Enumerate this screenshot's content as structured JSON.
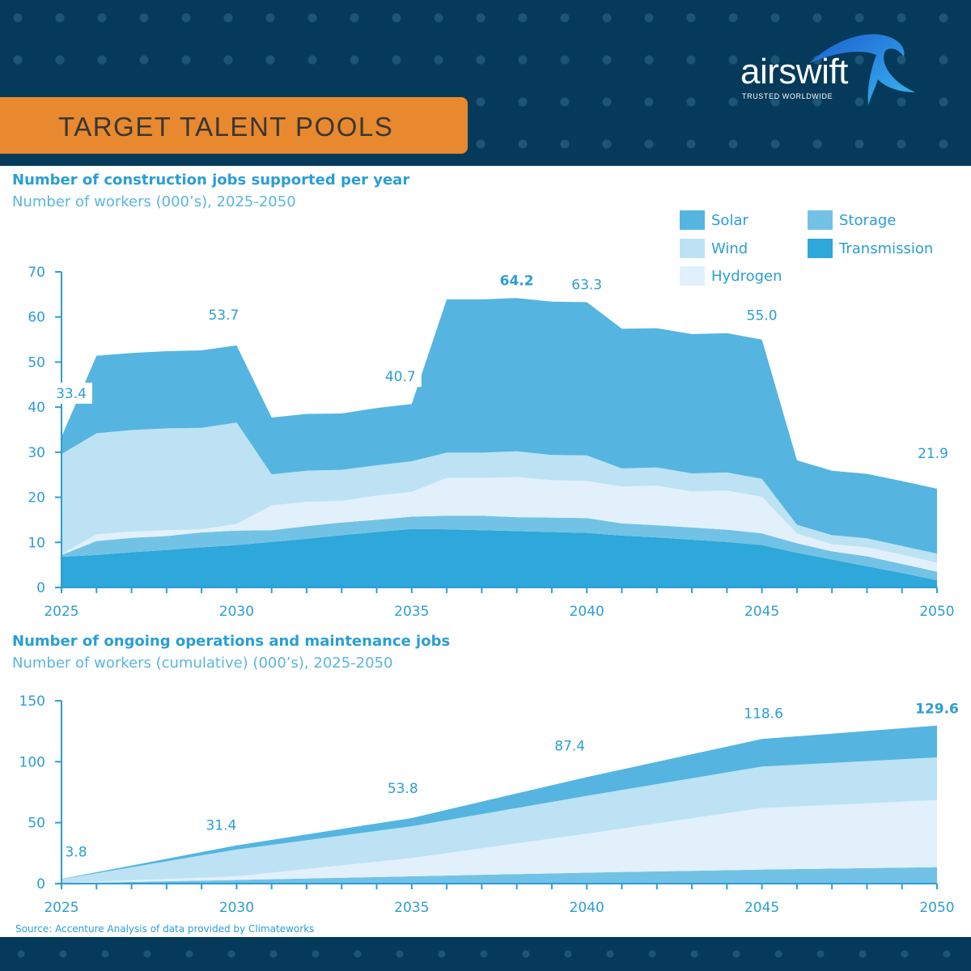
{
  "header": {
    "banner_title": "TARGET TALENT POOLS",
    "logo_text": "airswift",
    "logo_tagline": "TRUSTED WORLDWIDE",
    "background_color": "#053a5a",
    "banner_color": "#e8892f"
  },
  "legend": [
    {
      "name": "Solar",
      "color": "#55b5e0"
    },
    {
      "name": "Storage",
      "color": "#72c2e6"
    },
    {
      "name": "Wind",
      "color": "#bde2f3"
    },
    {
      "name": "Transmission",
      "color": "#2ea7da"
    },
    {
      "name": "Hydrogen",
      "color": "#e1f0fa"
    }
  ],
  "source": "Source: Accenture Analysis of data provided by Climateworks",
  "chart_data": [
    {
      "type": "area",
      "stacked": true,
      "title": "Number of construction jobs supported per year",
      "subtitle": "Number of workers (000’s), 2025-2050",
      "ylim": [
        0,
        70
      ],
      "yticks": [
        0,
        10,
        20,
        30,
        40,
        50,
        60,
        70
      ],
      "xticks": [
        2025,
        2030,
        2035,
        2040,
        2045,
        2050
      ],
      "grid": false,
      "legend_position": "top-right",
      "x": [
        2025,
        2026,
        2027,
        2028,
        2029,
        2030,
        2031,
        2032,
        2033,
        2034,
        2035,
        2036,
        2037,
        2038,
        2039,
        2040,
        2041,
        2042,
        2043,
        2044,
        2045,
        2046,
        2047,
        2048,
        2049,
        2050
      ],
      "series": [
        {
          "name": "Transmission",
          "values": [
            6.8,
            7.2,
            7.8,
            8.3,
            8.9,
            9.4,
            10.1,
            10.8,
            11.6,
            12.3,
            13.0,
            12.9,
            12.7,
            12.5,
            12.3,
            12.1,
            11.5,
            11.1,
            10.6,
            10.1,
            9.4,
            7.7,
            6.2,
            4.7,
            3.2,
            1.6
          ]
        },
        {
          "name": "Storage",
          "values": [
            0.4,
            3.1,
            3.2,
            3.1,
            3.3,
            3.2,
            2.6,
            2.8,
            2.8,
            2.7,
            2.7,
            3.0,
            3.2,
            3.1,
            3.2,
            3.3,
            2.7,
            2.7,
            2.7,
            2.7,
            2.6,
            2.1,
            1.8,
            2.2,
            2.0,
            1.9
          ]
        },
        {
          "name": "Hydrogen",
          "values": [
            0.2,
            1.5,
            1.4,
            1.3,
            0.7,
            1.5,
            5.5,
            5.4,
            4.8,
            5.4,
            5.5,
            8.4,
            8.4,
            8.9,
            8.3,
            8.2,
            8.2,
            8.8,
            8.0,
            8.7,
            8.1,
            2.2,
            1.6,
            2.0,
            2.1,
            2.0
          ]
        },
        {
          "name": "Wind",
          "values": [
            22.2,
            22.4,
            22.5,
            22.6,
            22.5,
            22.5,
            6.9,
            6.9,
            6.9,
            6.7,
            6.8,
            5.6,
            5.6,
            5.7,
            5.6,
            5.7,
            4.0,
            4.0,
            4.0,
            4.0,
            4.0,
            1.9,
            2.0,
            2.0,
            1.9,
            2.0
          ]
        },
        {
          "name": "Solar",
          "values": [
            3.8,
            17.2,
            17.1,
            17.1,
            17.2,
            17.1,
            12.6,
            12.6,
            12.5,
            12.7,
            12.7,
            34.0,
            34.0,
            34.0,
            34.0,
            34.0,
            31.0,
            30.9,
            30.9,
            30.9,
            30.9,
            14.3,
            14.3,
            14.3,
            14.4,
            14.4
          ]
        }
      ],
      "data_labels": [
        {
          "year": 2025,
          "text": "33.4",
          "bold": false
        },
        {
          "year": 2030,
          "text": "53.7",
          "bold": false
        },
        {
          "year": 2035,
          "text": "40.7",
          "bold": false
        },
        {
          "year": 2038,
          "text": "64.2",
          "bold": true
        },
        {
          "year": 2040,
          "text": "63.3",
          "bold": false
        },
        {
          "year": 2045,
          "text": "55.0",
          "bold": false
        },
        {
          "year": 2050,
          "text": "21.9",
          "bold": false
        }
      ]
    },
    {
      "type": "area",
      "stacked": true,
      "title": "Number of ongoing operations and maintenance jobs",
      "subtitle": "Number of workers (cumulative) (000’s), 2025-2050",
      "ylim": [
        0,
        150
      ],
      "yticks": [
        0,
        50,
        100,
        150
      ],
      "xticks": [
        2025,
        2030,
        2035,
        2040,
        2045,
        2050
      ],
      "grid": false,
      "x": [
        2025,
        2030,
        2035,
        2040,
        2045,
        2050
      ],
      "series": [
        {
          "name": "Storage",
          "values": [
            0.3,
            3.0,
            6.0,
            9.0,
            11.5,
            13.5
          ]
        },
        {
          "name": "Hydrogen",
          "values": [
            0.2,
            3.0,
            15.0,
            32.0,
            50.5,
            55.0
          ]
        },
        {
          "name": "Wind",
          "values": [
            3.1,
            22.0,
            26.0,
            31.0,
            34.0,
            35.0
          ]
        },
        {
          "name": "Solar",
          "values": [
            0.2,
            3.4,
            6.8,
            15.4,
            22.6,
            26.1
          ]
        }
      ],
      "data_labels": [
        {
          "year": 2025,
          "text": "3.8",
          "bold": false
        },
        {
          "year": 2030,
          "text": "31.4",
          "bold": false
        },
        {
          "year": 2035,
          "text": "53.8",
          "bold": false
        },
        {
          "year": 2040,
          "text": "87.4",
          "bold": false
        },
        {
          "year": 2045,
          "text": "118.6",
          "bold": false
        },
        {
          "year": 2050,
          "text": "129.6",
          "bold": true
        }
      ]
    }
  ]
}
